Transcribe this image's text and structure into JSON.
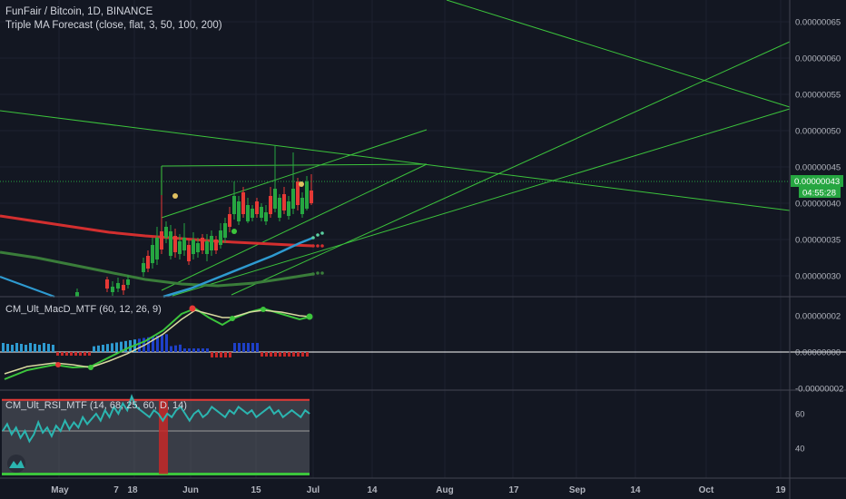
{
  "header": {
    "title": "FunFair / Bitcoin, 1D, BINANCE",
    "indicator": "Triple MA Forecast (close, flat, 3, 50, 100, 200)"
  },
  "colors": {
    "background": "#131722",
    "up": "#26a641",
    "down": "#e53935",
    "green_line": "#3cc43c",
    "ma_red": "#d32f2f",
    "ma_blue": "#2e9ad0",
    "ma_green": "#3a7d3a",
    "rsi_line": "#2bb5b0",
    "rsi_band": "#5a5d66"
  },
  "price_panel": {
    "y_labels": [
      "0.00000065",
      "0.00000060",
      "0.00000055",
      "0.00000050",
      "0.00000045",
      "0.00000040",
      "0.00000035",
      "0.00000030"
    ],
    "current_price": "0.00000043",
    "countdown": "04:55:28"
  },
  "macd_panel": {
    "label": "CM_Ult_MacD_MTF (60, 12, 26, 9)",
    "y_labels": [
      "0.00000002",
      "0.00000000",
      "-0.00000002"
    ]
  },
  "rsi_panel": {
    "label": "CM_Ult_RSI_MTF (14, 68, 25, 60, D, 14)",
    "y_labels": [
      "60",
      "40"
    ],
    "upper": 68,
    "lower": 25
  },
  "x_axis": {
    "labels": [
      "May",
      "7",
      "18",
      "Jun",
      "15",
      "Jul",
      "14",
      "Aug",
      "17",
      "Sep",
      "14",
      "Oct",
      "19"
    ]
  },
  "chart_data": {
    "type": "candlestick",
    "title": "FunFair / Bitcoin, 1D, BINANCE",
    "x_ticks": [
      "May",
      "7",
      "18",
      "Jun",
      "15",
      "Jul",
      "14",
      "Aug",
      "17",
      "Sep",
      "14",
      "Oct",
      "19"
    ],
    "y_range": [
      2.7e-07,
      6.7e-07
    ],
    "candles_approx_close": [
      2.9e-07,
      2.8e-07,
      3e-07,
      3.3e-07,
      3.6e-07,
      3.7e-07,
      3.5e-07,
      3.6e-07,
      3.4e-07,
      3.5e-07,
      3.6e-07,
      3.8e-07,
      4e-07,
      4.2e-07,
      4.1e-07,
      4e-07,
      4.3e-07,
      4.2e-07,
      4.4e-07,
      4.3e-07
    ],
    "last_price": 4.3e-07,
    "macd_range": [
      -2.5e-08,
      2.5e-08
    ],
    "rsi_range": [
      20,
      75
    ],
    "rsi_bands": {
      "upper": 68,
      "lower": 25
    }
  }
}
